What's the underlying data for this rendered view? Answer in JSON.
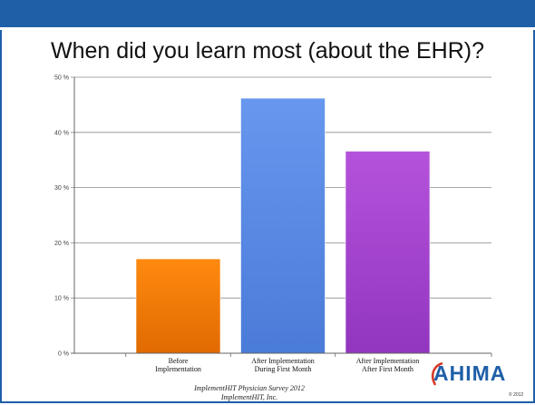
{
  "slide": {
    "title": "When did you learn most (about the EHR)?",
    "credit_line1": "ImplementHIT Physician Survey 2012",
    "credit_line2": "ImplementHIT, Inc.",
    "logo_text": "AHIMA",
    "copyright": "© 2012"
  },
  "colors": {
    "header_bar": "#1f5fa8",
    "bar_orange": "#f07a05",
    "bar_blue": "#5a8be4",
    "bar_purple": "#a444cf"
  },
  "chart_data": {
    "type": "bar",
    "title": "",
    "xlabel": "",
    "ylabel": "",
    "ylim": [
      0,
      50
    ],
    "yticks": [
      0,
      10,
      20,
      30,
      40,
      50
    ],
    "ytick_labels": [
      "0 %",
      "10 %",
      "20 %",
      "30 %",
      "40 %",
      "50 %"
    ],
    "grid": true,
    "categories": [
      [
        "Before",
        "Implementation"
      ],
      [
        "After Implementation",
        "During First Month"
      ],
      [
        "After Implementation",
        "After First Month"
      ]
    ],
    "values": [
      17.1,
      46.2,
      36.6
    ],
    "bar_colors": [
      "#f07a05",
      "#5a8be4",
      "#a444cf"
    ]
  }
}
